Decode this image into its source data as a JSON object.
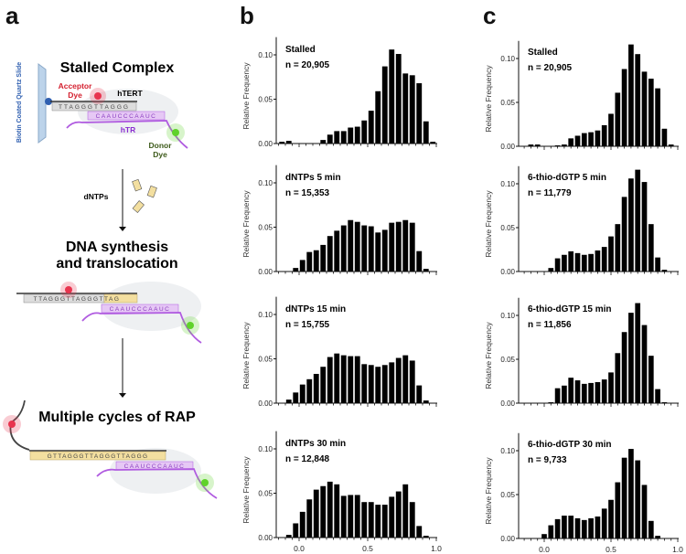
{
  "panel_labels": {
    "a": "a",
    "b": "b",
    "c": "c"
  },
  "diagram": {
    "stage1_title": "Stalled Complex",
    "acceptor_label": "Acceptor Dye",
    "htert_label": "hTERT",
    "slide_label": "Biotin Coated Quartz Slide",
    "htr_label": "hTR",
    "donor_label": "Donor Dye",
    "dntps_label": "dNTPs",
    "stage2_title_line1": "DNA synthesis",
    "stage2_title_line2": "and translocation",
    "stage3_title": "Multiple cycles of RAP",
    "dna_seq_1": "TTAGGGTTAGGG",
    "dna_seq_2": "TTAGGGTTAGGGTTAG",
    "dna_seq_3": "GTTAGGGTTAGGGTTAGGG",
    "rna_template": "CAAUCCCAAUC",
    "colors": {
      "acceptor": "#e8344e",
      "donor": "#5fd22a",
      "htr": "#b05be0",
      "slide": "#2f5fb0",
      "dna_new": "#f3dfa0"
    }
  },
  "chart_data": [
    {
      "type": "bar",
      "panel": "b",
      "title": "Stalled",
      "n_label": "n = 20,905",
      "ylabel": "Relative Frequency",
      "xlabel": "",
      "ylim": [
        0,
        0.12
      ],
      "xlim": [
        -0.15,
        1.0
      ],
      "yticks": [
        "0.00",
        "0.05",
        "0.10"
      ],
      "xticks": [],
      "x": [
        -0.125,
        -0.075,
        -0.025,
        0.025,
        0.075,
        0.125,
        0.175,
        0.225,
        0.275,
        0.325,
        0.375,
        0.425,
        0.475,
        0.525,
        0.575,
        0.625,
        0.675,
        0.725,
        0.775,
        0.825,
        0.875,
        0.925,
        0.975
      ],
      "values": [
        0.002,
        0.003,
        0,
        0,
        0,
        0,
        0.004,
        0.01,
        0.014,
        0.014,
        0.018,
        0.019,
        0.026,
        0.037,
        0.059,
        0.087,
        0.106,
        0.101,
        0.079,
        0.077,
        0.068,
        0.025,
        0.002
      ]
    },
    {
      "type": "bar",
      "panel": "b",
      "title": "dNTPs 5 min",
      "n_label": "n = 15,353",
      "ylabel": "Relative Frequency",
      "xlabel": "",
      "ylim": [
        0,
        0.12
      ],
      "xlim": [
        -0.15,
        1.0
      ],
      "yticks": [
        "0.00",
        "0.05",
        "0.10"
      ],
      "xticks": [],
      "x": [
        -0.125,
        -0.075,
        -0.025,
        0.025,
        0.075,
        0.125,
        0.175,
        0.225,
        0.275,
        0.325,
        0.375,
        0.425,
        0.475,
        0.525,
        0.575,
        0.625,
        0.675,
        0.725,
        0.775,
        0.825,
        0.875,
        0.925,
        0.975
      ],
      "values": [
        0,
        0,
        0.004,
        0.013,
        0.022,
        0.024,
        0.03,
        0.04,
        0.046,
        0.052,
        0.058,
        0.056,
        0.052,
        0.051,
        0.044,
        0.047,
        0.055,
        0.056,
        0.058,
        0.055,
        0.023,
        0.003,
        0
      ]
    },
    {
      "type": "bar",
      "panel": "b",
      "title": "dNTPs 15 min",
      "n_label": "n = 15,755",
      "ylabel": "Relative Frequency",
      "xlabel": "",
      "ylim": [
        0,
        0.12
      ],
      "xlim": [
        -0.15,
        1.0
      ],
      "yticks": [
        "0.00",
        "0.05",
        "0.10"
      ],
      "xticks": [],
      "x": [
        -0.125,
        -0.075,
        -0.025,
        0.025,
        0.075,
        0.125,
        0.175,
        0.225,
        0.275,
        0.325,
        0.375,
        0.425,
        0.475,
        0.525,
        0.575,
        0.625,
        0.675,
        0.725,
        0.775,
        0.825,
        0.875,
        0.925,
        0.975
      ],
      "values": [
        0,
        0.004,
        0.012,
        0.021,
        0.027,
        0.033,
        0.041,
        0.052,
        0.056,
        0.054,
        0.053,
        0.053,
        0.044,
        0.043,
        0.041,
        0.043,
        0.046,
        0.051,
        0.054,
        0.048,
        0.02,
        0.003,
        0
      ]
    },
    {
      "type": "bar",
      "panel": "b",
      "title": "dNTPs 30 min",
      "n_label": "n = 12,848",
      "ylabel": "Relative Frequency",
      "xlabel": "",
      "ylim": [
        0,
        0.12
      ],
      "xlim": [
        -0.15,
        1.0
      ],
      "yticks": [
        "0.00",
        "0.05",
        "0.10"
      ],
      "xticks": [
        "0.0",
        "0.5",
        "1.0"
      ],
      "x": [
        -0.125,
        -0.075,
        -0.025,
        0.025,
        0.075,
        0.125,
        0.175,
        0.225,
        0.275,
        0.325,
        0.375,
        0.425,
        0.475,
        0.525,
        0.575,
        0.625,
        0.675,
        0.725,
        0.775,
        0.825,
        0.875,
        0.925,
        0.975
      ],
      "values": [
        0,
        0.003,
        0.016,
        0.029,
        0.043,
        0.054,
        0.058,
        0.063,
        0.06,
        0.047,
        0.048,
        0.048,
        0.04,
        0.04,
        0.037,
        0.037,
        0.046,
        0.052,
        0.06,
        0.04,
        0.013,
        0.002,
        0
      ]
    },
    {
      "type": "bar",
      "panel": "c",
      "title": "Stalled",
      "n_label": "n = 20,905",
      "ylabel": "Relative Frequency",
      "xlabel": "",
      "ylim": [
        0,
        0.12
      ],
      "xlim": [
        -0.2,
        1.0
      ],
      "yticks": [
        "0.00",
        "0.05",
        "0.10"
      ],
      "xticks": [],
      "x": [
        -0.1,
        -0.05,
        0,
        0.05,
        0.1,
        0.15,
        0.2,
        0.25,
        0.3,
        0.35,
        0.4,
        0.45,
        0.5,
        0.55,
        0.6,
        0.65,
        0.7,
        0.75,
        0.8,
        0.85,
        0.9,
        0.95
      ],
      "values": [
        0.002,
        0.002,
        0,
        0,
        0.001,
        0.002,
        0.009,
        0.012,
        0.015,
        0.016,
        0.018,
        0.024,
        0.037,
        0.061,
        0.088,
        0.116,
        0.105,
        0.085,
        0.077,
        0.066,
        0.02,
        0.002
      ]
    },
    {
      "type": "bar",
      "panel": "c",
      "title": "6-thio-dGTP 5 min",
      "n_label": "n = 11,779",
      "ylabel": "Relative Frequency",
      "xlabel": "",
      "ylim": [
        0,
        0.12
      ],
      "xlim": [
        -0.2,
        1.0
      ],
      "yticks": [
        "0.00",
        "0.05",
        "0.10"
      ],
      "xticks": [],
      "x": [
        -0.1,
        -0.05,
        0,
        0.05,
        0.1,
        0.15,
        0.2,
        0.25,
        0.3,
        0.35,
        0.4,
        0.45,
        0.5,
        0.55,
        0.6,
        0.65,
        0.7,
        0.75,
        0.8,
        0.85,
        0.9,
        0.95
      ],
      "values": [
        0,
        0,
        0,
        0.004,
        0.015,
        0.019,
        0.023,
        0.021,
        0.019,
        0.02,
        0.024,
        0.028,
        0.04,
        0.054,
        0.085,
        0.106,
        0.116,
        0.102,
        0.054,
        0.016,
        0.002,
        0
      ]
    },
    {
      "type": "bar",
      "panel": "c",
      "title": "6-thio-dGTP 15 min",
      "n_label": "n = 11,856",
      "ylabel": "Relative Frequency",
      "xlabel": "",
      "ylim": [
        0,
        0.12
      ],
      "xlim": [
        -0.2,
        1.0
      ],
      "yticks": [
        "0.00",
        "0.05",
        "0.10"
      ],
      "xticks": [],
      "x": [
        -0.1,
        -0.05,
        0,
        0.05,
        0.1,
        0.15,
        0.2,
        0.25,
        0.3,
        0.35,
        0.4,
        0.45,
        0.5,
        0.55,
        0.6,
        0.65,
        0.7,
        0.75,
        0.8,
        0.85,
        0.9,
        0.95
      ],
      "values": [
        0,
        0,
        0,
        0.001,
        0.017,
        0.02,
        0.029,
        0.026,
        0.022,
        0.023,
        0.024,
        0.027,
        0.035,
        0.057,
        0.081,
        0.103,
        0.114,
        0.089,
        0.054,
        0.016,
        0.001,
        0
      ]
    },
    {
      "type": "bar",
      "panel": "c",
      "title": "6-thio-dGTP 30 min",
      "n_label": "n = 9,733",
      "ylabel": "Relative Frequency",
      "xlabel": "",
      "ylim": [
        0,
        0.12
      ],
      "xlim": [
        -0.2,
        1.0
      ],
      "yticks": [
        "0.00",
        "0.05",
        "0.10"
      ],
      "xticks": [
        "0.0",
        "0.5",
        "1.0"
      ],
      "x": [
        -0.1,
        -0.05,
        0,
        0.05,
        0.1,
        0.15,
        0.2,
        0.25,
        0.3,
        0.35,
        0.4,
        0.45,
        0.5,
        0.55,
        0.6,
        0.65,
        0.7,
        0.75,
        0.8,
        0.85,
        0.9,
        0.95
      ],
      "values": [
        0,
        0,
        0.005,
        0.015,
        0.022,
        0.026,
        0.026,
        0.023,
        0.021,
        0.023,
        0.025,
        0.034,
        0.044,
        0.064,
        0.092,
        0.102,
        0.089,
        0.061,
        0.02,
        0.003,
        0,
        0
      ]
    }
  ]
}
